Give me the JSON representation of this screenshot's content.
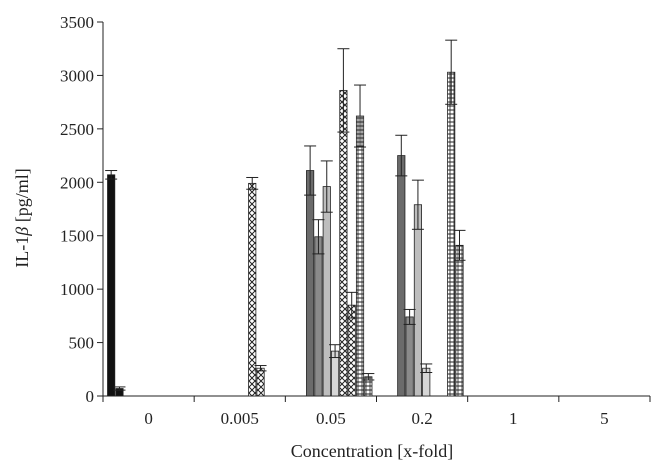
{
  "chart_data": {
    "type": "bar",
    "xlabel": "Concentration [x-fold]",
    "ylabel_prefix": "IL-1",
    "ylabel_symbol": "β",
    "ylabel_suffix": " [pg/ml]",
    "ylim": [
      0,
      3500
    ],
    "yticks": [
      0,
      500,
      1000,
      1500,
      2000,
      2500,
      3000,
      3500
    ],
    "ytick_labels": [
      "0",
      "500",
      "1000",
      "1500",
      "2000",
      "2500",
      "3000",
      "3500"
    ],
    "categories": [
      "0",
      "0.005",
      "0.05",
      "0.2",
      "1",
      "5"
    ],
    "grid": false,
    "legend": "none",
    "series": [
      {
        "pattern": "solid-black",
        "values": [
          2070,
          null,
          null,
          null,
          null,
          null
        ],
        "errors": [
          40,
          null,
          null,
          null,
          null,
          null
        ]
      },
      {
        "pattern": "solid-black",
        "values": [
          70,
          null,
          null,
          null,
          null,
          null
        ],
        "errors": [
          15,
          null,
          null,
          null,
          null,
          null
        ]
      },
      {
        "pattern": "solid-dark-gray",
        "values": [
          null,
          null,
          2110,
          2250,
          null,
          null
        ],
        "errors": [
          null,
          null,
          230,
          190,
          null,
          null
        ]
      },
      {
        "pattern": "solid-mid-gray",
        "values": [
          null,
          null,
          1490,
          740,
          null,
          null
        ],
        "errors": [
          null,
          null,
          160,
          70,
          null,
          null
        ]
      },
      {
        "pattern": "solid-light-gray",
        "values": [
          null,
          null,
          1960,
          1790,
          null,
          null
        ],
        "errors": [
          null,
          null,
          240,
          230,
          null,
          null
        ]
      },
      {
        "pattern": "solid-pale-gray",
        "values": [
          null,
          null,
          420,
          260,
          null,
          null
        ],
        "errors": [
          null,
          null,
          60,
          40,
          null,
          null
        ]
      },
      {
        "pattern": "crosshatch",
        "values": [
          null,
          1990,
          2860,
          null,
          null,
          null
        ],
        "errors": [
          null,
          55,
          390,
          null,
          null,
          null
        ]
      },
      {
        "pattern": "crosshatch",
        "values": [
          null,
          260,
          850,
          null,
          null,
          null
        ],
        "errors": [
          null,
          25,
          120,
          null,
          null,
          null
        ]
      },
      {
        "pattern": "grid-hatch",
        "values": [
          null,
          null,
          2620,
          3030,
          null,
          null
        ],
        "errors": [
          null,
          null,
          290,
          300,
          null,
          null
        ]
      },
      {
        "pattern": "grid-hatch",
        "values": [
          null,
          null,
          180,
          1410,
          null,
          null
        ],
        "errors": [
          null,
          null,
          30,
          140,
          null,
          null
        ]
      }
    ],
    "colors": {
      "solid-black": "#111111",
      "solid-dark-gray": "#6b6b6b",
      "solid-mid-gray": "#8a8a8a",
      "solid-light-gray": "#bdbdbd",
      "solid-pale-gray": "#d6d6d6",
      "axis": "#222222"
    }
  }
}
